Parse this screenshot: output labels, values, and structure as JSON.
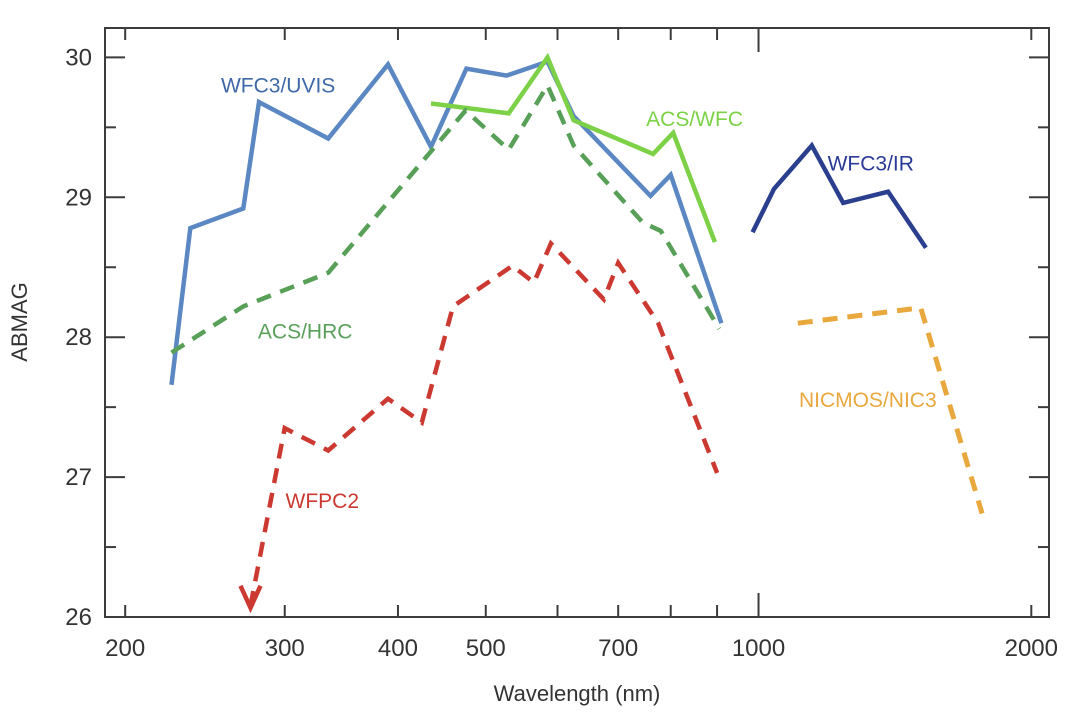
{
  "chart_data": {
    "type": "line",
    "title": "",
    "xlabel": "Wavelength (nm)",
    "ylabel": "ABMAG",
    "x_scale": "log",
    "xlim": [
      190,
      2092
    ],
    "ylim": [
      26,
      30.21
    ],
    "grid": false,
    "legend_position": "inline-labels",
    "axis_color": "#3c3c3c",
    "x_ticks": [
      {
        "value": 200,
        "label": "200",
        "major": false
      },
      {
        "value": 300,
        "label": "300",
        "major": false
      },
      {
        "value": 400,
        "label": "400",
        "major": false
      },
      {
        "value": 500,
        "label": "500",
        "major": false
      },
      {
        "value": 600,
        "label": "",
        "major": false
      },
      {
        "value": 700,
        "label": "700",
        "major": false
      },
      {
        "value": 800,
        "label": "",
        "major": false
      },
      {
        "value": 900,
        "label": "",
        "major": false
      },
      {
        "value": 1000,
        "label": "1000",
        "major": true
      },
      {
        "value": 2000,
        "label": "2000",
        "major": false
      }
    ],
    "y_ticks": [
      {
        "value": 26,
        "label": "26",
        "major": true
      },
      {
        "value": 26.5,
        "label": "",
        "major": false
      },
      {
        "value": 27,
        "label": "27",
        "major": true
      },
      {
        "value": 27.5,
        "label": "",
        "major": false
      },
      {
        "value": 28,
        "label": "28",
        "major": true
      },
      {
        "value": 28.5,
        "label": "",
        "major": false
      },
      {
        "value": 29,
        "label": "29",
        "major": true
      },
      {
        "value": 29.5,
        "label": "",
        "major": false
      },
      {
        "value": 30,
        "label": "30",
        "major": true
      }
    ],
    "series": [
      {
        "name": "WFC3/UVIS",
        "color": "#5b87c3",
        "style": "solid",
        "width": 4.5,
        "points": [
          [
            225,
            27.66
          ],
          [
            236,
            28.78
          ],
          [
            270,
            28.92
          ],
          [
            281,
            29.68
          ],
          [
            335,
            29.42
          ],
          [
            390,
            29.95
          ],
          [
            435,
            29.36
          ],
          [
            476,
            29.92
          ],
          [
            527,
            29.87
          ],
          [
            585,
            29.97
          ],
          [
            625,
            29.58
          ],
          [
            760,
            29.01
          ],
          [
            800,
            29.16
          ],
          [
            910,
            28.1
          ]
        ]
      },
      {
        "name": "ACS/WFC",
        "color": "#7cd147",
        "style": "solid",
        "width": 4.5,
        "points": [
          [
            435,
            29.67
          ],
          [
            530,
            29.6
          ],
          [
            585,
            30.0
          ],
          [
            625,
            29.55
          ],
          [
            765,
            29.31
          ],
          [
            805,
            29.46
          ],
          [
            895,
            28.68
          ]
        ]
      },
      {
        "name": "ACS/HRC",
        "color": "#58a058",
        "style": "dashed",
        "width": 4.5,
        "points": [
          [
            225,
            27.89
          ],
          [
            270,
            28.22
          ],
          [
            335,
            28.46
          ],
          [
            475,
            29.62
          ],
          [
            530,
            29.34
          ],
          [
            585,
            29.8
          ],
          [
            625,
            29.37
          ],
          [
            745,
            28.82
          ],
          [
            780,
            28.76
          ],
          [
            905,
            28.06
          ]
        ]
      },
      {
        "name": "WFPC2",
        "color": "#cc3931",
        "style": "dashed",
        "width": 4.5,
        "arrow_down_at_start": true,
        "points": [
          [
            275,
            26.08
          ],
          [
            300,
            27.35
          ],
          [
            335,
            27.19
          ],
          [
            390,
            27.56
          ],
          [
            425,
            27.39
          ],
          [
            460,
            28.22
          ],
          [
            535,
            28.51
          ],
          [
            565,
            28.39
          ],
          [
            590,
            28.67
          ],
          [
            675,
            28.27
          ],
          [
            700,
            28.53
          ],
          [
            775,
            28.1
          ],
          [
            900,
            27.03
          ]
        ]
      },
      {
        "name": "WFC3/IR",
        "color": "#2b3f8f",
        "style": "solid",
        "width": 4.5,
        "points": [
          [
            985,
            28.75
          ],
          [
            1040,
            29.06
          ],
          [
            1145,
            29.37
          ],
          [
            1240,
            28.96
          ],
          [
            1390,
            29.04
          ],
          [
            1530,
            28.64
          ]
        ]
      },
      {
        "name": "NICMOS/NIC3",
        "color": "#e9a83d",
        "style": "dashed",
        "width": 5,
        "points": [
          [
            1105,
            28.1
          ],
          [
            1510,
            28.21
          ],
          [
            1765,
            26.74
          ]
        ]
      }
    ],
    "curve_labels": [
      {
        "text": "WFC3/UVIS",
        "color": "#3e68a8",
        "x": 295,
        "y": 29.8
      },
      {
        "text": "ACS/HRC",
        "color": "#5aa05a",
        "x": 316,
        "y": 28.04
      },
      {
        "text": "ACS/WFC",
        "color": "#7cd147",
        "x": 850,
        "y": 29.56
      },
      {
        "text": "WFPC2",
        "color": "#cc3931",
        "x": 330,
        "y": 26.83
      },
      {
        "text": "WFC3/IR",
        "color": "#2b3a96",
        "x": 1330,
        "y": 29.24
      },
      {
        "text": "NICMOS/NIC3",
        "color": "#e9a83d",
        "x": 1320,
        "y": 27.55
      }
    ]
  }
}
